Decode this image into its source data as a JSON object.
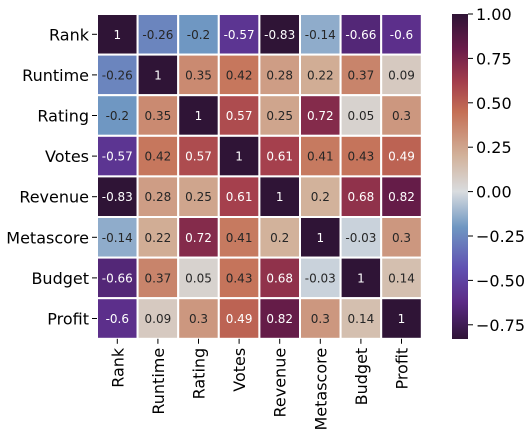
{
  "chart_data": {
    "type": "heatmap",
    "title": "",
    "xlabel": "",
    "ylabel": "",
    "row_labels": [
      "Rank",
      "Runtime",
      "Rating",
      "Votes",
      "Revenue",
      "Metascore",
      "Budget",
      "Profit"
    ],
    "col_labels": [
      "Rank",
      "Runtime",
      "Rating",
      "Votes",
      "Revenue",
      "Metascore",
      "Budget",
      "Profit"
    ],
    "values": [
      [
        1,
        -0.26,
        -0.2,
        -0.57,
        -0.83,
        -0.14,
        -0.66,
        -0.6
      ],
      [
        -0.26,
        1,
        0.35,
        0.42,
        0.28,
        0.22,
        0.37,
        0.09
      ],
      [
        -0.2,
        0.35,
        1,
        0.57,
        0.25,
        0.72,
        0.05,
        0.3
      ],
      [
        -0.57,
        0.42,
        0.57,
        1,
        0.61,
        0.41,
        0.43,
        0.49
      ],
      [
        -0.83,
        0.28,
        0.25,
        0.61,
        1,
        0.2,
        0.68,
        0.82
      ],
      [
        -0.14,
        0.22,
        0.72,
        0.41,
        0.2,
        1,
        -0.03,
        0.3
      ],
      [
        -0.66,
        0.37,
        0.05,
        0.43,
        0.68,
        -0.03,
        1,
        0.14
      ],
      [
        -0.6,
        0.09,
        0.3,
        0.49,
        0.82,
        0.3,
        0.14,
        1
      ]
    ],
    "display_labels": [
      [
        "1",
        "-0.26",
        "-0.2",
        "-0.57",
        "-0.83",
        "-0.14",
        "-0.66",
        "-0.6"
      ],
      [
        "-0.26",
        "1",
        "0.35",
        "0.42",
        "0.28",
        "0.22",
        "0.37",
        "0.09"
      ],
      [
        "-0.2",
        "0.35",
        "1",
        "0.57",
        "0.25",
        "0.72",
        "0.05",
        "0.3"
      ],
      [
        "-0.57",
        "0.42",
        "0.57",
        "1",
        "0.61",
        "0.41",
        "0.43",
        "0.49"
      ],
      [
        "-0.83",
        "0.28",
        "0.25",
        "0.61",
        "1",
        "0.2",
        "0.68",
        "0.82"
      ],
      [
        "-0.14",
        "0.22",
        "0.72",
        "0.41",
        "0.2",
        "1",
        "-0.03",
        "0.3"
      ],
      [
        "-0.66",
        "0.37",
        "0.05",
        "0.43",
        "0.68",
        "-0.03",
        "1",
        "0.14"
      ],
      [
        "-0.6",
        "0.09",
        "0.3",
        "0.49",
        "0.82",
        "0.3",
        "0.14",
        "1"
      ]
    ],
    "colormap": "twilight_shifted",
    "vmin": -0.83,
    "vmax": 1.0,
    "colorbar": {
      "ticks": [
        1.0,
        0.75,
        0.5,
        0.25,
        0.0,
        -0.25,
        -0.5,
        -0.75
      ],
      "tick_labels": [
        "1.00",
        "0.75",
        "0.50",
        "0.25",
        "0.00",
        "−0.25",
        "−0.50",
        "−0.75"
      ]
    },
    "colormap_stops": [
      {
        "v": -0.83,
        "color": "#2f1436"
      },
      {
        "v": -0.62,
        "color": "#5b2b86"
      },
      {
        "v": -0.43,
        "color": "#6051b2"
      },
      {
        "v": -0.2,
        "color": "#6f97c2"
      },
      {
        "v": 0.0,
        "color": "#d9dcdf"
      },
      {
        "v": 0.2,
        "color": "#d2b29b"
      },
      {
        "v": 0.45,
        "color": "#c46f55"
      },
      {
        "v": 0.62,
        "color": "#a33d4c"
      },
      {
        "v": 0.8,
        "color": "#6b1d4a"
      },
      {
        "v": 1.0,
        "color": "#2f1436"
      }
    ]
  }
}
